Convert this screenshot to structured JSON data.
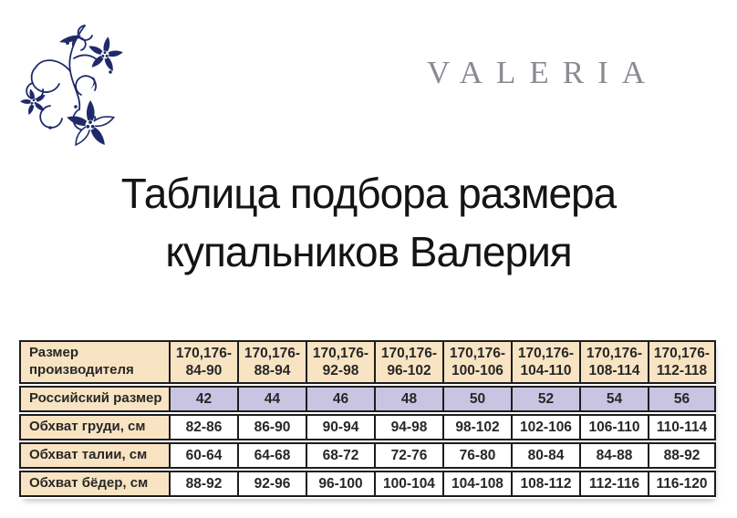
{
  "brand": {
    "wordmark": "VALERIA",
    "logo_icon": "floral-ornament-icon",
    "navy": "#1f2a6b",
    "wordmark_gray": "#8a8a93"
  },
  "title": {
    "line1": "Таблица подбора размера",
    "line2": "купальников Валерия"
  },
  "table": {
    "colors": {
      "label_bg": "#f8e4c3",
      "header_bg": "#f8e4c3",
      "russian_size_bg": "#c8c4e2",
      "measure_bg": "#ffffff",
      "border": "#1d1d1d",
      "text": "#272727"
    },
    "rows": [
      {
        "label": "Размер\nпроизводителя",
        "type": "head",
        "cell_bg": "#f8e4c3",
        "values": [
          "170,176-\n84-90",
          "170,176-\n88-94",
          "170,176-\n92-98",
          "170,176-\n96-102",
          "170,176-\n100-106",
          "170,176-\n104-110",
          "170,176-\n108-114",
          "170,176-\n112-118"
        ]
      },
      {
        "label": "Российский размер",
        "type": "size",
        "cell_bg": "#c8c4e2",
        "values": [
          "42",
          "44",
          "46",
          "48",
          "50",
          "52",
          "54",
          "56"
        ]
      },
      {
        "label": "Обхват груди, см",
        "type": "measure",
        "cell_bg": "#ffffff",
        "values": [
          "82-86",
          "86-90",
          "90-94",
          "94-98",
          "98-102",
          "102-106",
          "106-110",
          "110-114"
        ]
      },
      {
        "label": "Обхват талии, см",
        "type": "measure",
        "cell_bg": "#ffffff",
        "values": [
          "60-64",
          "64-68",
          "68-72",
          "72-76",
          "76-80",
          "80-84",
          "84-88",
          "88-92"
        ]
      },
      {
        "label": "Обхват бёдер, см",
        "type": "measure",
        "cell_bg": "#ffffff",
        "values": [
          "88-92",
          "92-96",
          "96-100",
          "100-104",
          "104-108",
          "108-112",
          "112-116",
          "116-120"
        ]
      }
    ]
  }
}
